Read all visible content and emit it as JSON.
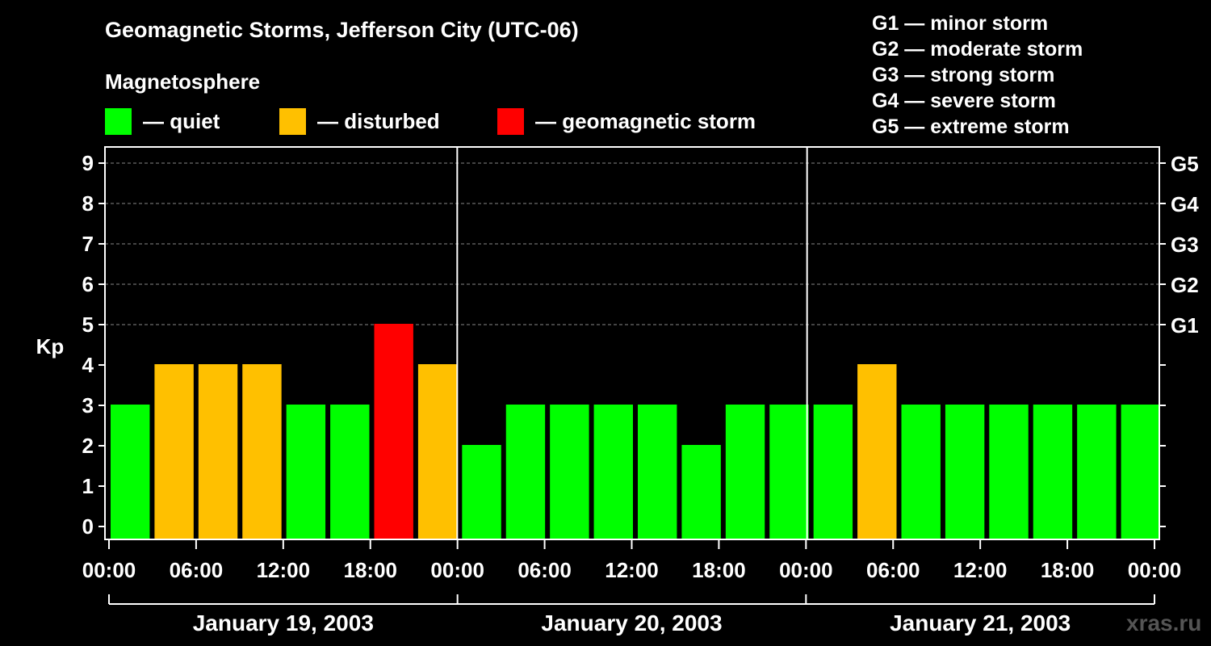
{
  "header": {
    "title": "Geomagnetic Storms, Jefferson City (UTC-06)",
    "magnetosphere_label": "Magnetosphere"
  },
  "legend": [
    {
      "label": "— quiet",
      "color": "#00ff00"
    },
    {
      "label": "— disturbed",
      "color": "#ffc000"
    },
    {
      "label": "— geomagnetic storm",
      "color": "#ff0000"
    }
  ],
  "g_scale_legend": [
    "G1 — minor storm",
    "G2 — moderate storm",
    "G3 — strong storm",
    "G4 — severe storm",
    "G5 — extreme storm"
  ],
  "watermark": "xras.ru",
  "chart_data": {
    "type": "bar",
    "ylabel": "Kp",
    "ylim": [
      0,
      9
    ],
    "y_ticks": [
      0,
      1,
      2,
      3,
      4,
      5,
      6,
      7,
      8,
      9
    ],
    "right_axis_labels": [
      {
        "kp": 5,
        "label": "G1"
      },
      {
        "kp": 6,
        "label": "G2"
      },
      {
        "kp": 7,
        "label": "G3"
      },
      {
        "kp": 8,
        "label": "G4"
      },
      {
        "kp": 9,
        "label": "G5"
      }
    ],
    "x_tick_labels": [
      "00:00",
      "06:00",
      "12:00",
      "18:00",
      "00:00",
      "06:00",
      "12:00",
      "18:00",
      "00:00",
      "06:00",
      "12:00",
      "18:00",
      "00:00"
    ],
    "days": [
      "January 19, 2003",
      "January 20, 2003",
      "January 21, 2003"
    ],
    "interval_hours": 3,
    "values": [
      3,
      4,
      4,
      4,
      3,
      3,
      5,
      4,
      2,
      3,
      3,
      3,
      3,
      2,
      3,
      3,
      3,
      4,
      3,
      3,
      3,
      3,
      3,
      3
    ],
    "status": [
      "quiet",
      "disturbed",
      "disturbed",
      "disturbed",
      "quiet",
      "quiet",
      "storm",
      "disturbed",
      "quiet",
      "quiet",
      "quiet",
      "quiet",
      "quiet",
      "quiet",
      "quiet",
      "quiet",
      "quiet",
      "disturbed",
      "quiet",
      "quiet",
      "quiet",
      "quiet",
      "quiet",
      "quiet"
    ],
    "status_colors": {
      "quiet": "#00ff00",
      "disturbed": "#ffc000",
      "storm": "#ff0000"
    },
    "grid": true
  }
}
